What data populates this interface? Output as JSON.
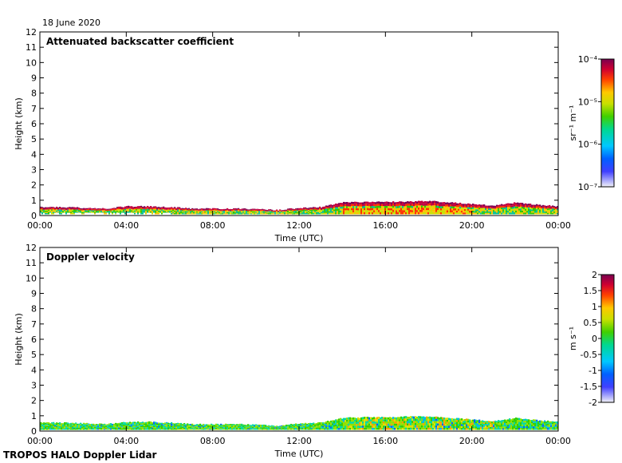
{
  "figure": {
    "date": "18 June 2020",
    "footer": "TROPOS HALO Doppler Lidar"
  },
  "chart_data": [
    {
      "type": "heatmap",
      "title": "Attenuated backscatter coefficient",
      "xlabel": "Time (UTC)",
      "ylabel": "Height (km)",
      "x_ticks": [
        "00:00",
        "04:00",
        "08:00",
        "12:00",
        "16:00",
        "20:00",
        "00:00"
      ],
      "x_tick_hours": [
        0,
        4,
        8,
        12,
        16,
        20,
        24
      ],
      "xlim_hours": [
        0,
        24
      ],
      "ylim": [
        0,
        12
      ],
      "y_ticks": [
        0,
        1,
        2,
        3,
        4,
        5,
        6,
        7,
        8,
        9,
        10,
        11,
        12
      ],
      "colorbar": {
        "label": "sr⁻¹ m⁻¹",
        "scale": "log",
        "range": [
          1e-07,
          0.0001
        ],
        "ticks": [
          "10⁻⁴",
          "10⁻⁵",
          "10⁻⁶",
          "10⁻⁷"
        ],
        "tick_values": [
          -4,
          -5,
          -6,
          -7
        ]
      },
      "layer_top_km": {
        "hours": [
          0,
          1,
          2,
          3,
          4,
          5,
          6,
          7,
          8,
          9,
          10,
          11,
          12,
          13,
          14,
          15,
          16,
          17,
          18,
          19,
          20,
          21,
          22,
          23,
          24
        ],
        "values": [
          0.55,
          0.55,
          0.5,
          0.45,
          0.6,
          0.6,
          0.55,
          0.45,
          0.45,
          0.45,
          0.42,
          0.35,
          0.5,
          0.55,
          0.85,
          0.9,
          0.9,
          0.9,
          0.95,
          0.85,
          0.75,
          0.65,
          0.85,
          0.7,
          0.6
        ]
      }
    },
    {
      "type": "heatmap",
      "title": "Doppler velocity",
      "xlabel": "Time (UTC)",
      "ylabel": "Height (km)",
      "x_ticks": [
        "00:00",
        "04:00",
        "08:00",
        "12:00",
        "16:00",
        "20:00",
        "00:00"
      ],
      "x_tick_hours": [
        0,
        4,
        8,
        12,
        16,
        20,
        24
      ],
      "xlim_hours": [
        0,
        24
      ],
      "ylim": [
        0,
        12
      ],
      "y_ticks": [
        0,
        1,
        2,
        3,
        4,
        5,
        6,
        7,
        8,
        9,
        10,
        11,
        12
      ],
      "colorbar": {
        "label": "m s⁻¹",
        "scale": "linear",
        "range": [
          -2,
          2
        ],
        "ticks": [
          "2",
          "1.5",
          "1",
          "0.5",
          "0",
          "-0.5",
          "-1",
          "-1.5",
          "-2"
        ],
        "tick_values": [
          2,
          1.5,
          1,
          0.5,
          0,
          -0.5,
          -1,
          -1.5,
          -2
        ]
      },
      "layer_top_km": {
        "hours": [
          0,
          1,
          2,
          3,
          4,
          5,
          6,
          7,
          8,
          9,
          10,
          11,
          12,
          13,
          14,
          15,
          16,
          17,
          18,
          19,
          20,
          21,
          22,
          23,
          24
        ],
        "values": [
          0.55,
          0.55,
          0.5,
          0.45,
          0.6,
          0.6,
          0.55,
          0.45,
          0.45,
          0.45,
          0.42,
          0.35,
          0.5,
          0.55,
          0.85,
          0.9,
          0.9,
          0.95,
          0.95,
          0.85,
          0.75,
          0.65,
          0.85,
          0.7,
          0.6
        ]
      }
    }
  ]
}
